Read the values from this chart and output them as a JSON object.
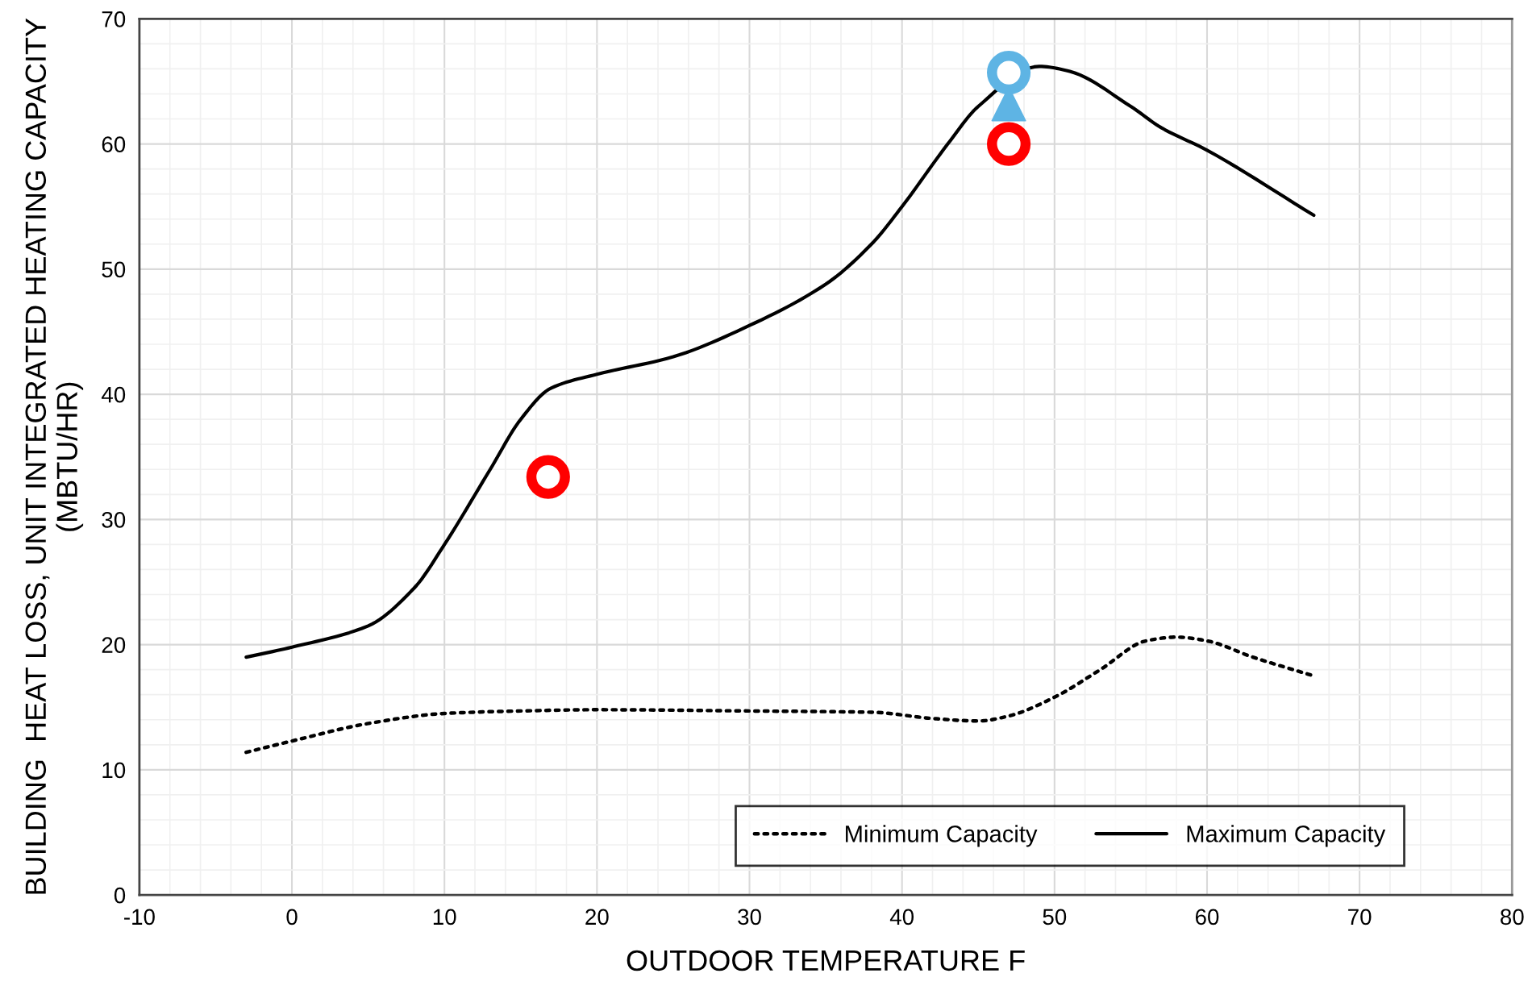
{
  "chart_data": {
    "type": "line",
    "xlabel": "OUTDOOR TEMPERATURE F",
    "ylabel": "BUILDING  HEAT LOSS, UNIT INTEGRATED HEATING CAPACITY\n(MBTU/HR)",
    "xlim": [
      -10,
      80
    ],
    "xticks": [
      -10,
      0,
      10,
      20,
      30,
      40,
      50,
      60,
      70,
      80
    ],
    "ylim": [
      0,
      70
    ],
    "yticks": [
      0,
      10,
      20,
      30,
      40,
      50,
      60,
      70
    ],
    "grid": true,
    "legend": "bottom right",
    "series": [
      {
        "name": "Minimum Capacity",
        "color": "#000000",
        "line_style": "dotted",
        "marker": "none",
        "x": [
          -3,
          0,
          5,
          10,
          15,
          20,
          30,
          38,
          42,
          45,
          47,
          50,
          53,
          56,
          58,
          60,
          63,
          67
        ],
        "values": [
          11.4,
          12.3,
          13.7,
          14.5,
          14.7,
          14.8,
          14.7,
          14.6,
          14.1,
          13.9,
          14.3,
          15.8,
          18.0,
          20.3,
          20.6,
          20.3,
          19.0,
          17.5
        ]
      },
      {
        "name": "Maximum Capacity",
        "color": "#000000",
        "line_style": "solid",
        "marker": "none",
        "x": [
          -3,
          0,
          5,
          8,
          10,
          13,
          15,
          17,
          20,
          25,
          30,
          35,
          38,
          40,
          43,
          45,
          49,
          51,
          55,
          57,
          60,
          67
        ],
        "values": [
          19.0,
          19.8,
          21.5,
          24.5,
          28,
          34,
          38,
          40.5,
          41.6,
          43,
          45.5,
          48.8,
          52,
          55,
          60,
          63,
          66.2,
          65.8,
          63,
          61.3,
          59.5,
          54.3
        ]
      },
      {
        "type": "scatter",
        "color": "#ff0000",
        "marker": "circle",
        "x": [
          16.8,
          47
        ],
        "values": [
          33.4,
          60
        ]
      },
      {
        "type": "scatter",
        "color": "#5eb4e4",
        "marker": "circle",
        "x": [
          47
        ],
        "values": [
          65.7
        ]
      },
      {
        "type": "scatter",
        "color": "#5eb4e4",
        "marker": "triangle",
        "x": [
          47
        ],
        "values": [
          63.2
        ]
      }
    ]
  }
}
